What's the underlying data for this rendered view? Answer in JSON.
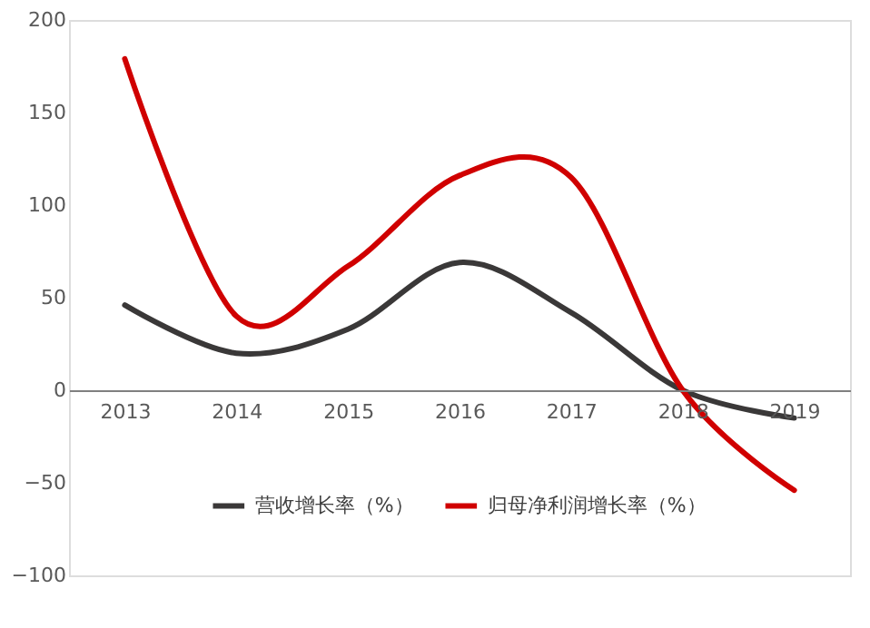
{
  "chart_data": {
    "type": "line",
    "categories": [
      "2013",
      "2014",
      "2015",
      "2016",
      "2017",
      "2018",
      "2019"
    ],
    "series": [
      {
        "name": "营收增长率（%）",
        "color": "#3a3838",
        "values": [
          46,
          20,
          33,
          69,
          42,
          0,
          -15
        ]
      },
      {
        "name": "归母净利润增长率（%）",
        "color": "#d00000",
        "values": [
          179,
          40,
          67,
          116,
          115,
          0,
          -54
        ]
      }
    ],
    "ylim": [
      -100,
      200
    ],
    "yticks": [
      -100,
      -50,
      0,
      50,
      100,
      150,
      200
    ],
    "grid": false,
    "legend": "bottom",
    "marker": "none",
    "line_style": "solid"
  }
}
